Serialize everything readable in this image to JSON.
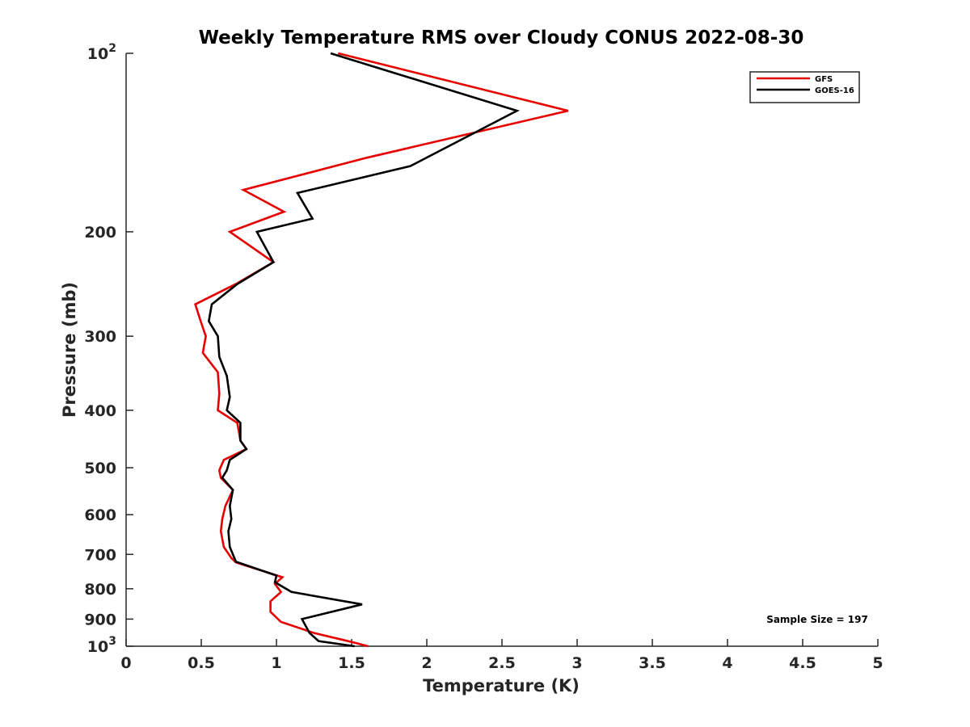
{
  "chart_data": {
    "type": "line",
    "title": "Weekly Temperature RMS over Cloudy CONUS 2022-08-30",
    "xlabel": "Temperature (K)",
    "ylabel": "Pressure (mb)",
    "xlim": [
      0,
      5
    ],
    "ylim": [
      1000,
      100
    ],
    "yscale": "log",
    "grid": false,
    "legend_position": "top-right",
    "xticks": [
      "0",
      "0.5",
      "1",
      "1.5",
      "2",
      "2.5",
      "3",
      "3.5",
      "4",
      "4.5",
      "5"
    ],
    "yticks": [
      {
        "value": 100,
        "base": "10",
        "exp": "2"
      },
      {
        "value": 200,
        "label": "200"
      },
      {
        "value": 300,
        "label": "300"
      },
      {
        "value": 400,
        "label": "400"
      },
      {
        "value": 500,
        "label": "500"
      },
      {
        "value": 600,
        "label": "600"
      },
      {
        "value": 700,
        "label": "700"
      },
      {
        "value": 800,
        "label": "800"
      },
      {
        "value": 900,
        "label": "900"
      },
      {
        "value": 1000,
        "base": "10",
        "exp": "3"
      }
    ],
    "series": [
      {
        "name": "GFS",
        "color": "#e60000",
        "points": [
          [
            1.41,
            100
          ],
          [
            2.94,
            125
          ],
          [
            1.6,
            150
          ],
          [
            0.78,
            170
          ],
          [
            1.05,
            185
          ],
          [
            0.69,
            200
          ],
          [
            0.98,
            225
          ],
          [
            0.73,
            245
          ],
          [
            0.46,
            265
          ],
          [
            0.5,
            285
          ],
          [
            0.53,
            300
          ],
          [
            0.51,
            320
          ],
          [
            0.61,
            345
          ],
          [
            0.62,
            375
          ],
          [
            0.61,
            400
          ],
          [
            0.74,
            420
          ],
          [
            0.76,
            450
          ],
          [
            0.8,
            465
          ],
          [
            0.65,
            485
          ],
          [
            0.62,
            505
          ],
          [
            0.63,
            520
          ],
          [
            0.71,
            545
          ],
          [
            0.66,
            580
          ],
          [
            0.64,
            610
          ],
          [
            0.63,
            640
          ],
          [
            0.65,
            680
          ],
          [
            0.7,
            710
          ],
          [
            0.73,
            722
          ],
          [
            1.04,
            765
          ],
          [
            0.99,
            785
          ],
          [
            1.03,
            810
          ],
          [
            0.96,
            840
          ],
          [
            0.96,
            875
          ],
          [
            1.03,
            910
          ],
          [
            1.25,
            950
          ],
          [
            1.51,
            985
          ],
          [
            1.61,
            1000
          ]
        ]
      },
      {
        "name": "GOES-16",
        "color": "#000000",
        "points": [
          [
            1.36,
            100
          ],
          [
            2.6,
            125
          ],
          [
            1.89,
            155
          ],
          [
            1.14,
            172
          ],
          [
            1.24,
            190
          ],
          [
            0.87,
            200
          ],
          [
            0.98,
            225
          ],
          [
            0.74,
            245
          ],
          [
            0.57,
            265
          ],
          [
            0.55,
            283
          ],
          [
            0.61,
            300
          ],
          [
            0.62,
            325
          ],
          [
            0.67,
            350
          ],
          [
            0.69,
            380
          ],
          [
            0.67,
            400
          ],
          [
            0.76,
            420
          ],
          [
            0.76,
            450
          ],
          [
            0.8,
            465
          ],
          [
            0.69,
            485
          ],
          [
            0.67,
            505
          ],
          [
            0.64,
            520
          ],
          [
            0.71,
            545
          ],
          [
            0.69,
            580
          ],
          [
            0.7,
            610
          ],
          [
            0.68,
            640
          ],
          [
            0.69,
            680
          ],
          [
            0.73,
            720
          ],
          [
            1.0,
            760
          ],
          [
            0.99,
            780
          ],
          [
            1.1,
            810
          ],
          [
            1.57,
            850
          ],
          [
            1.17,
            900
          ],
          [
            1.22,
            950
          ],
          [
            1.28,
            980
          ],
          [
            1.52,
            1000
          ]
        ]
      }
    ],
    "annotation": "Sample Size = 197"
  }
}
